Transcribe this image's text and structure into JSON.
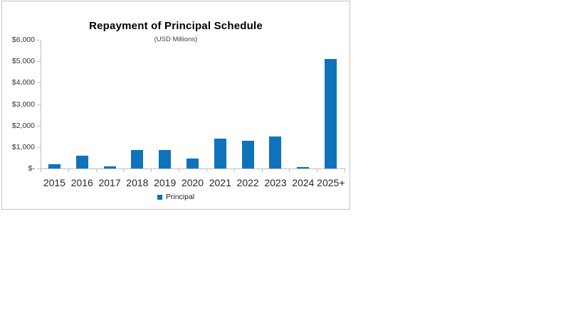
{
  "chart_data": {
    "type": "bar",
    "title": "Repayment of Principal Schedule",
    "subtitle": "(USD Millions)",
    "categories": [
      "2015",
      "2016",
      "2017",
      "2018",
      "2019",
      "2020",
      "2021",
      "2022",
      "2023",
      "2024",
      "2025+"
    ],
    "series": [
      {
        "name": "Principal",
        "color": "#1072ba",
        "values": [
          200,
          600,
          100,
          850,
          850,
          450,
          1400,
          1300,
          1500,
          60,
          5100
        ]
      }
    ],
    "xlabel": "",
    "ylabel": "",
    "ylim": [
      0,
      6000
    ],
    "ytick_step": 1000,
    "ytick_labels": [
      "$-",
      "$1,000",
      "$2,000",
      "$3,000",
      "$4,000",
      "$5,000",
      "$6,000"
    ],
    "grid": false,
    "legend_position": "bottom"
  },
  "colors": {
    "bar": "#1072ba",
    "axis": "#bfbfbf",
    "frame_border": "#c3c3c3",
    "label_text": "#262626"
  }
}
